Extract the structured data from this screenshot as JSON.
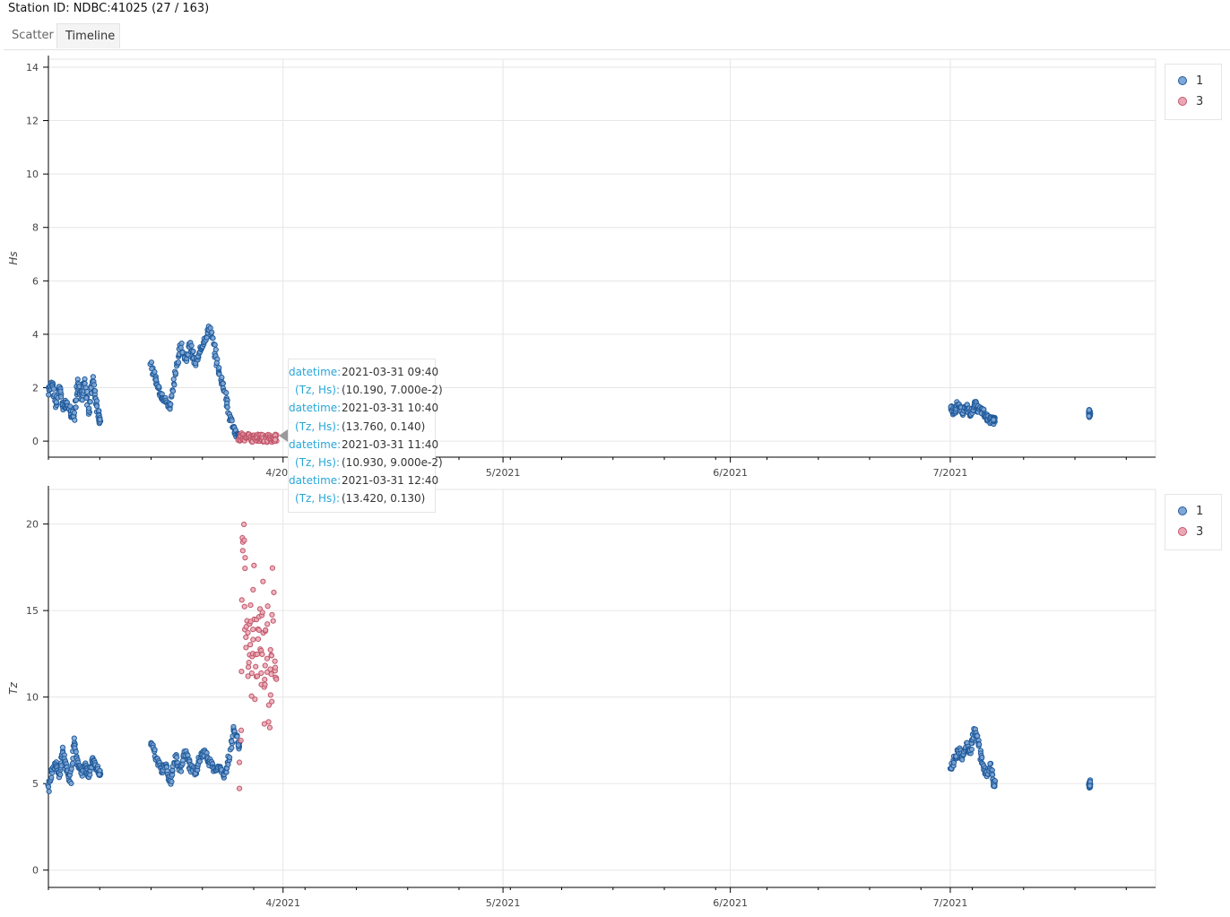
{
  "header": {
    "station_title": "Station ID: NDBC:41025 (27 / 163)"
  },
  "tabs": [
    {
      "label": "Scatter",
      "active": false
    },
    {
      "label": "Timeline",
      "active": true
    }
  ],
  "legend": [
    {
      "label": "1",
      "color": "#1f5a9a",
      "fill": "#7fa6d6"
    },
    {
      "label": "3",
      "color": "#c0566a",
      "fill": "#eba8b4"
    }
  ],
  "tooltip": {
    "rows": [
      {
        "key": "datetime:",
        "value": "2021-03-31 09:40"
      },
      {
        "key": "(Tz, Hs):",
        "value": "(10.190, 7.000e-2)"
      },
      {
        "key": "datetime:",
        "value": "2021-03-31 10:40"
      },
      {
        "key": "(Tz, Hs):",
        "value": "(13.760, 0.140)"
      },
      {
        "key": "datetime:",
        "value": "2021-03-31 11:40"
      },
      {
        "key": "(Tz, Hs):",
        "value": "(10.930, 9.000e-2)"
      },
      {
        "key": "datetime:",
        "value": "2021-03-31 12:40"
      },
      {
        "key": "(Tz, Hs):",
        "value": "(13.420, 0.130)"
      }
    ]
  },
  "chart_data": [
    {
      "type": "scatter",
      "ylabel": "Hs",
      "xlabel": "",
      "xlim": [
        "2021-02-28",
        "2021-07-29"
      ],
      "ylim": [
        -0.6,
        14.3
      ],
      "x_ticks": [
        "4/2021",
        "5/2021",
        "6/2021",
        "7/2021"
      ],
      "y_ticks": [
        0,
        2,
        4,
        6,
        8,
        10,
        12,
        14
      ],
      "grid": true,
      "legend_position": "right",
      "series": [
        {
          "name": "1",
          "segments": [
            {
              "start": "2021-02-28",
              "end": "2021-03-07",
              "points": [
                [
                  0,
                  1.8
                ],
                [
                  0.5,
                  2.3
                ],
                [
                  1,
                  1.3
                ],
                [
                  1.5,
                  2.1
                ],
                [
                  2,
                  1.2
                ],
                [
                  2.5,
                  1.5
                ],
                [
                  3,
                  1.1
                ],
                [
                  3.5,
                  0.9
                ],
                [
                  4,
                  2.2
                ],
                [
                  4.5,
                  1.6
                ],
                [
                  5,
                  2.3
                ],
                [
                  5.5,
                  1.0
                ],
                [
                  6,
                  2.4
                ],
                [
                  6.5,
                  1.5
                ],
                [
                  7,
                  0.8
                ]
              ]
            },
            {
              "start": "2021-03-14",
              "end": "2021-03-26",
              "points": [
                [
                  0,
                  2.9
                ],
                [
                  0.5,
                  2.2
                ],
                [
                  1,
                  1.8
                ],
                [
                  1.5,
                  1.5
                ],
                [
                  2,
                  1.3
                ],
                [
                  2.5,
                  2.5
                ],
                [
                  3,
                  3.6
                ],
                [
                  3.5,
                  3.0
                ],
                [
                  4,
                  3.6
                ],
                [
                  4.5,
                  2.9
                ],
                [
                  5,
                  3.3
                ],
                [
                  5.5,
                  3.8
                ],
                [
                  6,
                  4.3
                ],
                [
                  6.5,
                  3.4
                ],
                [
                  7,
                  2.5
                ],
                [
                  7.5,
                  2.0
                ],
                [
                  8,
                  1.0
                ],
                [
                  8.5,
                  0.4
                ],
                [
                  9,
                  0.15
                ]
              ]
            },
            {
              "start": "2021-07-01",
              "end": "2021-07-07",
              "points": [
                [
                  0,
                  1.2
                ],
                [
                  0.5,
                  1.1
                ],
                [
                  1,
                  1.4
                ],
                [
                  1.5,
                  1.1
                ],
                [
                  2,
                  1.3
                ],
                [
                  2.5,
                  1.0
                ],
                [
                  3,
                  1.4
                ],
                [
                  3.5,
                  1.2
                ],
                [
                  4,
                  1.1
                ],
                [
                  4.5,
                  0.9
                ],
                [
                  5,
                  0.8
                ],
                [
                  5.5,
                  0.75
                ]
              ]
            },
            {
              "start": "2021-07-20",
              "end": "2021-07-20",
              "points": [
                [
                  0,
                  1.0
                ],
                [
                  0,
                  1.05
                ]
              ]
            }
          ]
        },
        {
          "name": "3",
          "segments": [
            {
              "start": "2021-03-26",
              "end": "2021-03-31",
              "points": [
                [
                  0,
                  0.1
                ],
                [
                  0.5,
                  0.2
                ],
                [
                  1,
                  0.12
                ],
                [
                  1.5,
                  0.18
                ],
                [
                  2,
                  0.08
                ],
                [
                  2.5,
                  0.15
                ],
                [
                  3,
                  0.1
                ],
                [
                  3.5,
                  0.14
                ],
                [
                  4,
                  0.07
                ],
                [
                  4.5,
                  0.12
                ],
                [
                  5,
                  0.09
                ],
                [
                  5.5,
                  0.13
                ]
              ]
            }
          ]
        }
      ]
    },
    {
      "type": "scatter",
      "ylabel": "Tz",
      "xlabel": "",
      "xlim": [
        "2021-02-28",
        "2021-07-29"
      ],
      "ylim": [
        -1,
        22
      ],
      "x_ticks": [
        "4/2021",
        "5/2021",
        "6/2021",
        "7/2021"
      ],
      "y_ticks": [
        0,
        5,
        10,
        15,
        20
      ],
      "grid": true,
      "legend_position": "right",
      "series": [
        {
          "name": "1",
          "segments": [
            {
              "start": "2021-02-28",
              "end": "2021-03-07",
              "points": [
                [
                  0,
                  4.7
                ],
                [
                  0.5,
                  5.8
                ],
                [
                  1,
                  6.2
                ],
                [
                  1.5,
                  5.5
                ],
                [
                  2,
                  6.9
                ],
                [
                  2.5,
                  5.8
                ],
                [
                  3,
                  5.2
                ],
                [
                  3.5,
                  7.5
                ],
                [
                  4,
                  6.2
                ],
                [
                  4.5,
                  5.6
                ],
                [
                  5,
                  6.0
                ],
                [
                  5.5,
                  5.4
                ],
                [
                  6,
                  6.4
                ],
                [
                  6.5,
                  6.0
                ],
                [
                  7,
                  5.6
                ]
              ]
            },
            {
              "start": "2021-03-14",
              "end": "2021-03-26",
              "points": [
                [
                  0,
                  7.5
                ],
                [
                  0.5,
                  6.5
                ],
                [
                  1,
                  5.8
                ],
                [
                  1.5,
                  6.0
                ],
                [
                  2,
                  5.0
                ],
                [
                  2.5,
                  6.5
                ],
                [
                  3,
                  5.8
                ],
                [
                  3.5,
                  6.8
                ],
                [
                  4,
                  6.0
                ],
                [
                  4.5,
                  5.6
                ],
                [
                  5,
                  6.4
                ],
                [
                  5.5,
                  6.8
                ],
                [
                  6,
                  6.2
                ],
                [
                  6.5,
                  5.8
                ],
                [
                  7,
                  6.0
                ],
                [
                  7.5,
                  5.4
                ],
                [
                  8,
                  6.5
                ],
                [
                  8.5,
                  8.3
                ],
                [
                  9,
                  7.2
                ]
              ]
            },
            {
              "start": "2021-07-01",
              "end": "2021-07-07",
              "points": [
                [
                  0,
                  5.8
                ],
                [
                  0.5,
                  6.4
                ],
                [
                  1,
                  7.0
                ],
                [
                  1.5,
                  6.5
                ],
                [
                  2,
                  7.2
                ],
                [
                  2.5,
                  6.8
                ],
                [
                  3,
                  8.0
                ],
                [
                  3.5,
                  7.5
                ],
                [
                  4,
                  6.2
                ],
                [
                  4.5,
                  5.5
                ],
                [
                  5,
                  6.0
                ],
                [
                  5.5,
                  5.0
                ]
              ]
            },
            {
              "start": "2021-07-20",
              "end": "2021-07-20",
              "points": [
                [
                  0,
                  4.8
                ],
                [
                  0,
                  5.0
                ]
              ]
            }
          ]
        },
        {
          "name": "3",
          "segments": [
            {
              "start": "2021-03-26",
              "end": "2021-03-31",
              "points": [
                [
                  0,
                  4.6
                ],
                [
                  0.3,
                  8.5
                ],
                [
                  0.5,
                  18.4
                ],
                [
                  0.7,
                  20.6
                ],
                [
                  0.9,
                  16.8
                ],
                [
                  1,
                  12.2
                ],
                [
                  1.2,
                  14.5
                ],
                [
                  1.4,
                  11.0
                ],
                [
                  1.6,
                  13.6
                ],
                [
                  1.8,
                  15.0
                ],
                [
                  2,
                  10.4
                ],
                [
                  2.2,
                  12.8
                ],
                [
                  2.4,
                  17.0
                ],
                [
                  2.6,
                  9.5
                ],
                [
                  2.8,
                  14.2
                ],
                [
                  3,
                  11.8
                ],
                [
                  3.2,
                  15.5
                ],
                [
                  3.4,
                  10.8
                ],
                [
                  3.6,
                  13.0
                ],
                [
                  3.8,
                  16.6
                ],
                [
                  4,
                  9.0
                ],
                [
                  4.2,
                  12.4
                ],
                [
                  4.4,
                  14.8
                ],
                [
                  4.6,
                  11.2
                ],
                [
                  4.8,
                  7.6
                ],
                [
                  5,
                  13.4
                ],
                [
                  5.2,
                  10.2
                ],
                [
                  5.4,
                  17.1
                ],
                [
                  5.6,
                  12.6
                ],
                [
                  5.8,
                  11.0
                ]
              ]
            }
          ]
        }
      ]
    }
  ]
}
